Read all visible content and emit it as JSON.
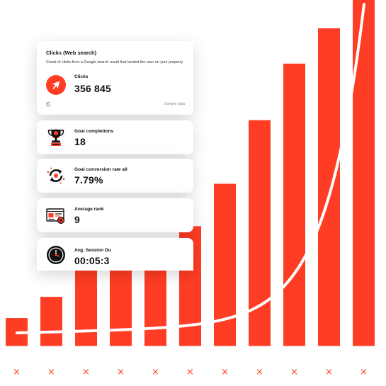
{
  "chart_data": {
    "type": "bar",
    "values": [
      40,
      70,
      110,
      150,
      130,
      170,
      230,
      320,
      400,
      450,
      490
    ],
    "ylim": [
      0,
      490
    ],
    "x_markers": [
      "×",
      "×",
      "×",
      "×",
      "×",
      "×",
      "×",
      "×",
      "×",
      "×",
      "×"
    ],
    "bar_color": "#ff3d24",
    "curve_color": "#ffffff",
    "marker_color": "#ff3d24"
  },
  "clicks_card": {
    "title": "Clicks (Web search)",
    "description": "Count of clicks from a Google search result that landed the user on your property.",
    "label": "Clicks",
    "value": "356 845",
    "source_icon": "google-g-icon",
    "note": "Sample data"
  },
  "goal_card": {
    "label": "Goal completions",
    "value": "18",
    "icon": "trophy-icon"
  },
  "conversion_card": {
    "label": "Goal conversion rate all",
    "value": "7.79%",
    "icon": "refresh-cycle-icon"
  },
  "rank_card": {
    "label": "Average rank",
    "value": "9",
    "icon": "ranking-page-icon"
  },
  "session_card": {
    "label": "Avg. Session Du",
    "value": "00:05:3",
    "icon": "stopwatch-icon"
  },
  "colors": {
    "accent": "#ff3d24",
    "dark": "#111111",
    "card_bg": "#ffffff"
  }
}
